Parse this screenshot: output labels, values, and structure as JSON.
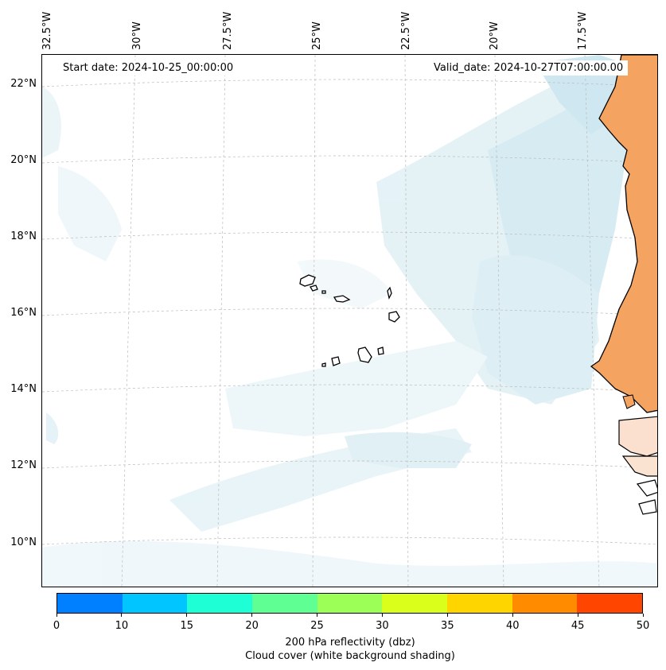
{
  "map": {
    "lon_labels": [
      "32.5°W",
      "30°W",
      "27.5°W",
      "25°W",
      "22.5°W",
      "20°W",
      "17.5°W"
    ],
    "lat_labels": [
      "22°N",
      "20°N",
      "18°N",
      "16°N",
      "14°N",
      "12°N",
      "10°N"
    ],
    "start_date": "Start date: 2024-10-25_00:00:00",
    "valid_date": "Valid_date: 2024-10-27T07:00:00.00",
    "land_color": "#f4a460",
    "cloud_color": "#add8e6"
  },
  "colorbar": {
    "colors": [
      "#007fff",
      "#00c5ff",
      "#1fffd5",
      "#5fff93",
      "#9bff57",
      "#d9ff1a",
      "#ffd500",
      "#ff8c00",
      "#ff4500"
    ],
    "ticks": [
      "0",
      "10",
      "15",
      "20",
      "25",
      "30",
      "35",
      "40",
      "45",
      "50"
    ],
    "title_line1": "200 hPa reflectivity (dbz)",
    "title_line2": "Cloud cover (white background shading)"
  }
}
